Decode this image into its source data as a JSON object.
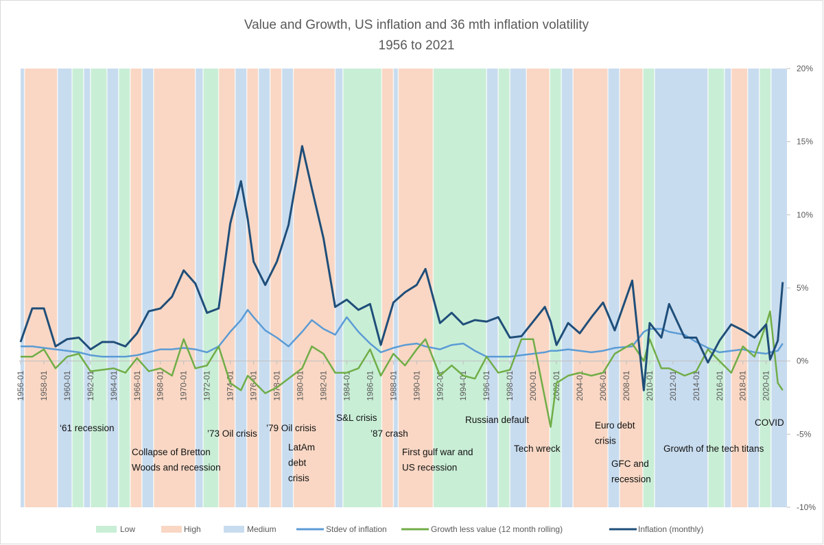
{
  "chart_data": {
    "type": "line",
    "title": "Value and Growth, US inflation and 36 mth inflation volatility",
    "subtitle": "1956 to 2021",
    "regimes": [
      {
        "name": "Low",
        "color": "#c9eed6"
      },
      {
        "name": "High",
        "color": "#f9d7c4"
      },
      {
        "name": "Medium",
        "color": "#c8dcef"
      }
    ],
    "bands": [
      {
        "start": "1956-01",
        "regime": "Medium"
      },
      {
        "start": "1956-05",
        "regime": "High"
      },
      {
        "start": "1959-03",
        "regime": "Medium"
      },
      {
        "start": "1960-06",
        "regime": "Low"
      },
      {
        "start": "1961-06",
        "regime": "Medium"
      },
      {
        "start": "1962-01",
        "regime": "Low"
      },
      {
        "start": "1963-06",
        "regime": "Medium"
      },
      {
        "start": "1964-06",
        "regime": "Low"
      },
      {
        "start": "1965-06",
        "regime": "High"
      },
      {
        "start": "1966-06",
        "regime": "Medium"
      },
      {
        "start": "1967-06",
        "regime": "High"
      },
      {
        "start": "1971-01",
        "regime": "Medium"
      },
      {
        "start": "1971-09",
        "regime": "Low"
      },
      {
        "start": "1973-01",
        "regime": "High"
      },
      {
        "start": "1974-06",
        "regime": "Medium"
      },
      {
        "start": "1975-06",
        "regime": "High"
      },
      {
        "start": "1976-06",
        "regime": "Medium"
      },
      {
        "start": "1977-06",
        "regime": "High"
      },
      {
        "start": "1978-06",
        "regime": "Medium"
      },
      {
        "start": "1979-06",
        "regime": "High"
      },
      {
        "start": "1983-01",
        "regime": "Medium"
      },
      {
        "start": "1983-09",
        "regime": "Low"
      },
      {
        "start": "1987-01",
        "regime": "High"
      },
      {
        "start": "1988-01",
        "regime": "Medium"
      },
      {
        "start": "1988-06",
        "regime": "High"
      },
      {
        "start": "1991-06",
        "regime": "Low"
      },
      {
        "start": "1996-01",
        "regime": "Medium"
      },
      {
        "start": "1997-01",
        "regime": "Low"
      },
      {
        "start": "1998-01",
        "regime": "Medium"
      },
      {
        "start": "1999-06",
        "regime": "High"
      },
      {
        "start": "2001-06",
        "regime": "Low"
      },
      {
        "start": "2002-06",
        "regime": "Medium"
      },
      {
        "start": "2003-06",
        "regime": "High"
      },
      {
        "start": "2006-06",
        "regime": "Medium"
      },
      {
        "start": "2007-06",
        "regime": "High"
      },
      {
        "start": "2009-06",
        "regime": "Low"
      },
      {
        "start": "2010-06",
        "regime": "Medium"
      },
      {
        "start": "2015-01",
        "regime": "Low"
      },
      {
        "start": "2016-06",
        "regime": "Medium"
      },
      {
        "start": "2017-01",
        "regime": "High"
      },
      {
        "start": "2018-06",
        "regime": "Medium"
      },
      {
        "start": "2019-06",
        "regime": "Low"
      },
      {
        "start": "2020-06",
        "regime": "Medium"
      }
    ],
    "x": [
      "1956-01",
      "1957-01",
      "1958-01",
      "1959-01",
      "1960-01",
      "1961-01",
      "1962-01",
      "1963-01",
      "1964-01",
      "1965-01",
      "1966-01",
      "1967-01",
      "1968-01",
      "1969-01",
      "1970-01",
      "1971-01",
      "1972-01",
      "1973-01",
      "1974-01",
      "1974-12",
      "1975-07",
      "1976-01",
      "1977-01",
      "1978-01",
      "1979-01",
      "1980-03",
      "1981-01",
      "1982-01",
      "1983-01",
      "1984-01",
      "1985-01",
      "1986-01",
      "1986-12",
      "1988-01",
      "1989-01",
      "1990-01",
      "1990-10",
      "1992-01",
      "1993-01",
      "1994-01",
      "1995-01",
      "1996-01",
      "1997-01",
      "1998-01",
      "1999-01",
      "2000-01",
      "2001-01",
      "2001-07",
      "2002-01",
      "2003-01",
      "2004-01",
      "2005-01",
      "2006-01",
      "2007-01",
      "2008-07",
      "2009-07",
      "2010-01",
      "2011-01",
      "2011-09",
      "2013-01",
      "2014-01",
      "2015-01",
      "2016-01",
      "2017-01",
      "2018-01",
      "2019-01",
      "2020-01",
      "2020-05",
      "2021-01",
      "2021-06"
    ],
    "xticks": [
      "1956-01",
      "1958-01",
      "1960-01",
      "1962-01",
      "1964-01",
      "1966-01",
      "1968-01",
      "1970-01",
      "1972-01",
      "1974-01",
      "1976-01",
      "1978-01",
      "1980-01",
      "1982-01",
      "1984-01",
      "1986-01",
      "1988-01",
      "1990-01",
      "1992-01",
      "1994-01",
      "1996-01",
      "1998-01",
      "2000-01",
      "2002-01",
      "2004-01",
      "2006-01",
      "2008-01",
      "2010-01",
      "2012-01",
      "2014-01",
      "2016-01",
      "2018-01",
      "2020-01"
    ],
    "series": [
      {
        "name": "Stdev of inflation",
        "color": "#5b9bd5",
        "values": [
          1.0,
          1.0,
          0.9,
          0.8,
          0.7,
          0.6,
          0.4,
          0.3,
          0.3,
          0.3,
          0.4,
          0.6,
          0.8,
          0.8,
          0.9,
          0.8,
          0.6,
          1.0,
          2.0,
          2.8,
          3.5,
          3.0,
          2.1,
          1.6,
          1.0,
          2.0,
          2.8,
          2.2,
          1.8,
          3.0,
          2.0,
          1.2,
          0.6,
          0.9,
          1.1,
          1.2,
          1.0,
          0.8,
          1.1,
          1.2,
          0.7,
          0.3,
          0.3,
          0.3,
          0.4,
          0.5,
          0.6,
          0.7,
          0.7,
          0.8,
          0.7,
          0.6,
          0.7,
          0.9,
          1.0,
          2.0,
          2.2,
          2.2,
          2.0,
          1.8,
          1.3,
          0.9,
          0.6,
          0.7,
          0.8,
          0.6,
          0.5,
          0.6,
          0.7,
          1.2
        ]
      },
      {
        "name": "Growth less value (12 month rolling)",
        "color": "#70ad47",
        "values": [
          0.3,
          0.3,
          0.8,
          -0.5,
          0.3,
          0.5,
          -0.7,
          -0.6,
          -0.5,
          -0.8,
          0.2,
          -0.7,
          -0.5,
          -1.0,
          1.5,
          -0.5,
          -0.3,
          1.0,
          -1.5,
          -2.0,
          -1.0,
          -1.4,
          -2.2,
          -1.8,
          -1.2,
          -0.5,
          1.0,
          0.5,
          -0.8,
          -0.8,
          -0.5,
          0.8,
          -1.0,
          0.5,
          -0.3,
          0.8,
          1.5,
          -1.0,
          -0.3,
          -1.0,
          -1.2,
          0.3,
          -0.8,
          -0.6,
          1.5,
          1.5,
          -2.5,
          -4.5,
          -1.5,
          -1.0,
          -0.8,
          -1.0,
          -0.8,
          0.5,
          1.2,
          0.0,
          1.5,
          -0.5,
          -0.5,
          -1.0,
          -0.7,
          0.8,
          0.0,
          -0.8,
          1.0,
          0.3,
          2.5,
          3.4,
          -1.5,
          -2.0
        ]
      },
      {
        "name": "Inflation (monthly)",
        "color": "#1f4e79",
        "values": [
          1.3,
          3.6,
          3.6,
          1.0,
          1.5,
          1.6,
          0.8,
          1.3,
          1.3,
          1.0,
          1.9,
          3.4,
          3.6,
          4.4,
          6.2,
          5.3,
          3.3,
          3.6,
          9.4,
          12.3,
          9.7,
          6.8,
          5.2,
          6.8,
          9.3,
          14.7,
          11.8,
          8.4,
          3.7,
          4.2,
          3.5,
          3.9,
          1.1,
          4.0,
          4.7,
          5.2,
          6.3,
          2.6,
          3.3,
          2.5,
          2.8,
          2.7,
          3.0,
          1.6,
          1.7,
          2.7,
          3.7,
          2.7,
          1.1,
          2.6,
          1.9,
          3.0,
          4.0,
          2.1,
          5.5,
          -2.0,
          2.6,
          1.6,
          3.9,
          1.6,
          1.6,
          -0.1,
          1.4,
          2.5,
          2.1,
          1.6,
          2.5,
          0.1,
          1.4,
          5.4
        ]
      }
    ],
    "ylim": [
      -10,
      20
    ],
    "yticks": [
      {
        "value": 20,
        "label": "20%"
      },
      {
        "value": 15,
        "label": "15%"
      },
      {
        "value": 10,
        "label": "10%"
      },
      {
        "value": 5,
        "label": "5%"
      },
      {
        "value": 0,
        "label": "0%"
      },
      {
        "value": -5,
        "label": "-5%"
      },
      {
        "value": -10,
        "label": "-10%"
      }
    ],
    "annotations": [
      [
        "‘61 recession"
      ],
      [
        "Collapse of Bretton",
        "Woods and recession"
      ],
      [
        "’73 Oil crisis"
      ],
      [
        "’79 Oil crisis"
      ],
      [
        "LatAm",
        "debt",
        "crisis"
      ],
      [
        "S&L crisis"
      ],
      [
        "’87 crash"
      ],
      [
        "First gulf war and",
        "US recession"
      ],
      [
        "Russian default"
      ],
      [
        "Tech wreck"
      ],
      [
        "Euro debt",
        "crisis"
      ],
      [
        "GFC and",
        "recession"
      ],
      [
        "Growth of the tech titans"
      ],
      [
        "COVID"
      ]
    ]
  }
}
